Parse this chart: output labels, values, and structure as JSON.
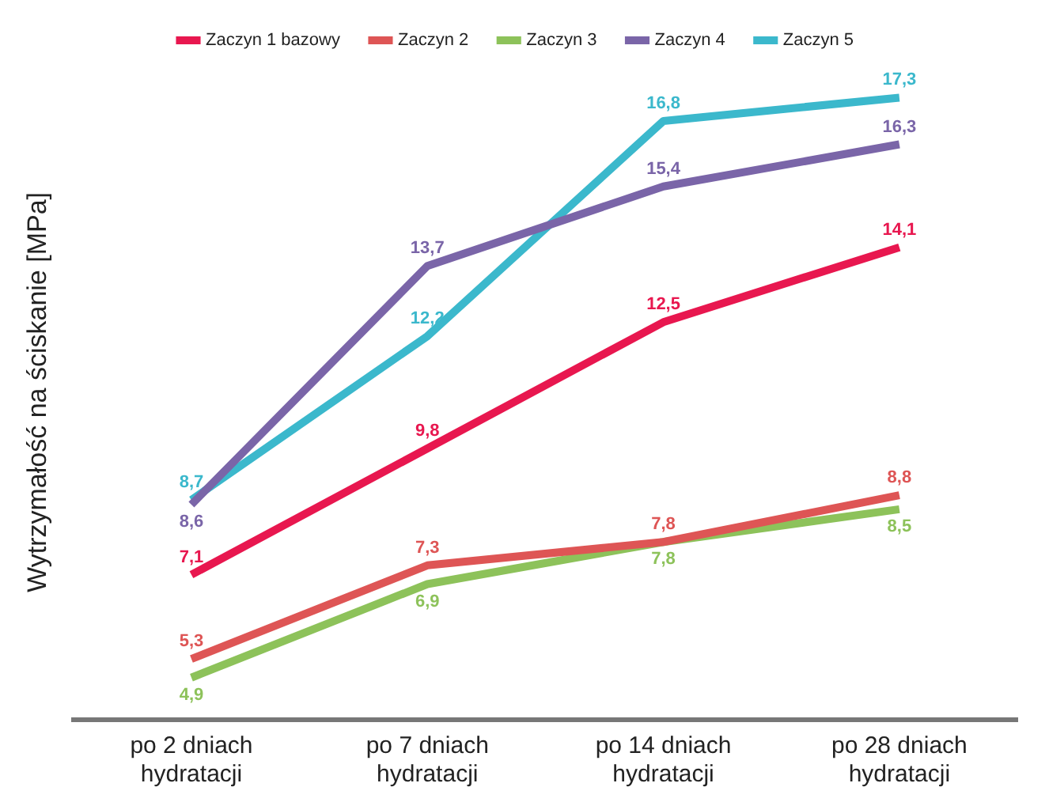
{
  "chart_data": {
    "type": "line",
    "ylabel": "Wytrzymałość na ściskanie [MPa]",
    "categories": [
      "po 2 dniach hydratacji",
      "po 7 dniach hydratacji",
      "po 14 dniach hydratacji",
      "po 28 dniach hydratacji"
    ],
    "series": [
      {
        "name": "Zaczyn 1 bazowy",
        "color": "#e8174f",
        "values": [
          7.1,
          9.8,
          12.5,
          14.1
        ],
        "value_labels": [
          "7,1",
          "9,8",
          "12,5",
          "14,1"
        ]
      },
      {
        "name": "Zaczyn 2",
        "color": "#de5555",
        "values": [
          5.3,
          7.3,
          7.8,
          8.8
        ],
        "value_labels": [
          "5,3",
          "7,3",
          "7,8",
          "8,8"
        ]
      },
      {
        "name": "Zaczyn 3",
        "color": "#8dc25a",
        "values": [
          4.9,
          6.9,
          7.8,
          8.5
        ],
        "value_labels": [
          "4,9",
          "6,9",
          "7,8",
          "8,5"
        ]
      },
      {
        "name": "Zaczyn 4",
        "color": "#7a65a8",
        "values": [
          8.6,
          13.7,
          15.4,
          16.3
        ],
        "value_labels": [
          "8,6",
          "13,7",
          "15,4",
          "16,3"
        ]
      },
      {
        "name": "Zaczyn 5",
        "color": "#3bb8cc",
        "values": [
          8.7,
          12.2,
          16.8,
          17.3
        ],
        "value_labels": [
          "8,7",
          "12,2",
          "16,8",
          "17,3"
        ]
      }
    ],
    "tick_labels": "x",
    "grid": false,
    "legend": "top",
    "marker": "none",
    "line_style": "solid"
  }
}
